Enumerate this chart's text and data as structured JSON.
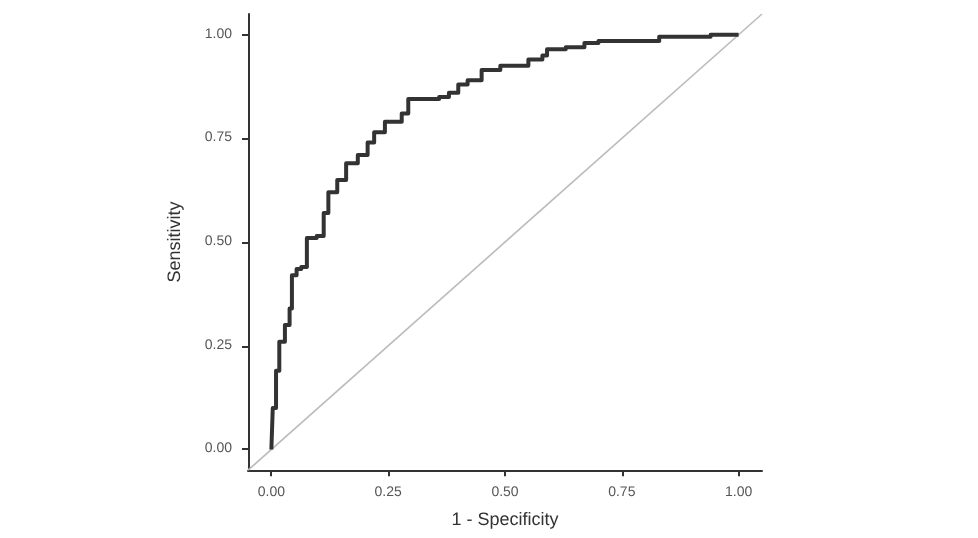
{
  "chart_data": {
    "type": "step",
    "xlabel": "1 - Specificity",
    "ylabel": "Sensitivity",
    "xlim": [
      -0.05,
      1.05
    ],
    "ylim": [
      -0.05,
      1.05
    ],
    "xticks": [
      {
        "value": 0,
        "label": "0.00"
      },
      {
        "value": 0.25,
        "label": "0.25"
      },
      {
        "value": 0.5,
        "label": "0.50"
      },
      {
        "value": 0.75,
        "label": "0.75"
      },
      {
        "value": 1,
        "label": "1.00"
      }
    ],
    "yticks": [
      {
        "value": 0,
        "label": "0.00"
      },
      {
        "value": 0.25,
        "label": "0.25"
      },
      {
        "value": 0.5,
        "label": "0.50"
      },
      {
        "value": 0.75,
        "label": "0.75"
      },
      {
        "value": 1,
        "label": "1.00"
      }
    ],
    "grid": false,
    "marker": "none",
    "series": [
      {
        "color": "#333333",
        "x": [
          0,
          0.003,
          0.01,
          0.017,
          0.029,
          0.039,
          0.044,
          0.054,
          0.064,
          0.076,
          0.097,
          0.112,
          0.122,
          0.141,
          0.16,
          0.185,
          0.206,
          0.22,
          0.243,
          0.264,
          0.279,
          0.293,
          0.359,
          0.38,
          0.4,
          0.42,
          0.45,
          0.49,
          0.54,
          0.55,
          0.58,
          0.59,
          0.63,
          0.67,
          0.7,
          0.83,
          0.94,
          1.0
        ],
        "values": [
          0,
          0.1,
          0.19,
          0.26,
          0.3,
          0.34,
          0.42,
          0.435,
          0.44,
          0.51,
          0.515,
          0.57,
          0.62,
          0.65,
          0.69,
          0.71,
          0.74,
          0.765,
          0.79,
          0.79,
          0.81,
          0.845,
          0.85,
          0.86,
          0.88,
          0.89,
          0.915,
          0.925,
          0.925,
          0.94,
          0.95,
          0.965,
          0.97,
          0.98,
          0.985,
          0.995,
          1.0,
          1.0
        ]
      },
      {
        "type": "line",
        "color": "#bbbbbb",
        "x": [
          -0.05,
          1.05
        ],
        "values": [
          -0.05,
          1.05
        ]
      }
    ]
  }
}
